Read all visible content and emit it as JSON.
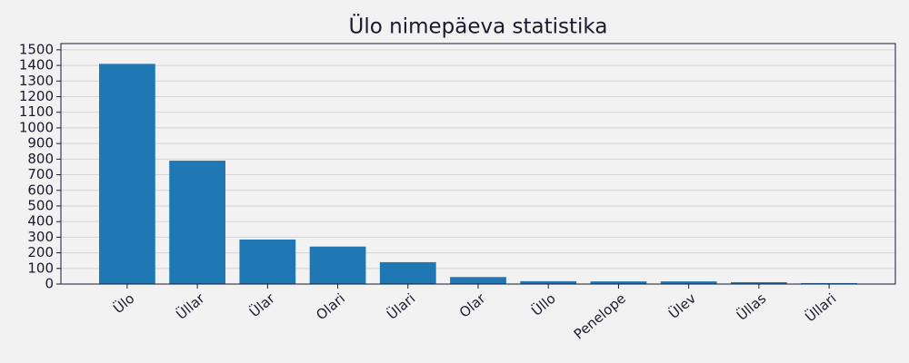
{
  "chart_data": {
    "type": "bar",
    "title": "Ülo nimepäeva statistika",
    "categories": [
      "Ülo",
      "Üllar",
      "Ülar",
      "Olari",
      "Ülari",
      "Olar",
      "Üllo",
      "Penelope",
      "Ülev",
      "Üllas",
      "Üllari"
    ],
    "values": [
      1410,
      790,
      285,
      240,
      140,
      45,
      18,
      17,
      17,
      12,
      6
    ],
    "color": "#1f77b4",
    "ylim": [
      0,
      1540
    ],
    "yticks": [
      0,
      100,
      200,
      300,
      400,
      500,
      600,
      700,
      800,
      900,
      1000,
      1100,
      1200,
      1300,
      1400,
      1500
    ],
    "grid": true
  }
}
